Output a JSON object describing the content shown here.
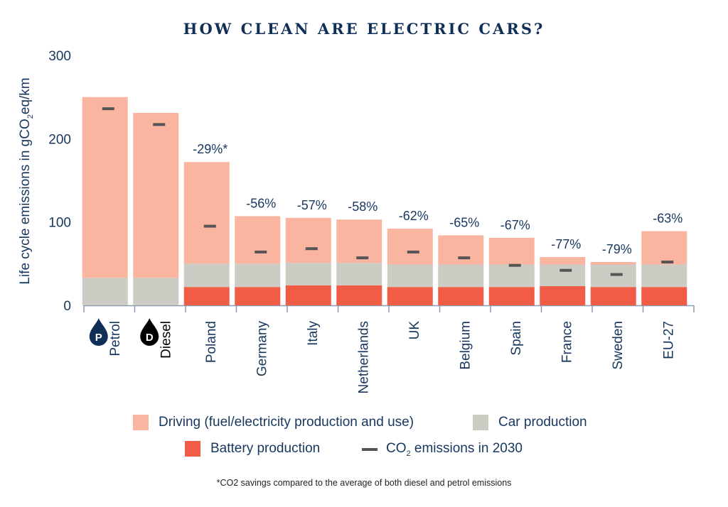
{
  "title": "HOW CLEAN ARE ELECTRIC CARS?",
  "footnote": "*CO2 savings compared to the average of both diesel and petrol emissions",
  "chart_data": {
    "type": "bar",
    "stacked": true,
    "title": "HOW CLEAN ARE ELECTRIC CARS?",
    "xlabel": "",
    "ylabel": "Life cycle emissions in gCO2eq/km",
    "ylim": [
      0,
      300
    ],
    "yticks": [
      0,
      100,
      200,
      300
    ],
    "grid": false,
    "legend_position": "bottom",
    "categories": [
      "Petrol",
      "Diesel",
      "Poland",
      "Germany",
      "Italy",
      "Netherlands",
      "UK",
      "Belgium",
      "Spain",
      "France",
      "Sweden",
      "EU-27"
    ],
    "category_icons": {
      "Petrol": {
        "letter": "P",
        "color": "#0f2f57"
      },
      "Diesel": {
        "letter": "D",
        "color": "#000000"
      }
    },
    "series": [
      {
        "name": "Battery production",
        "color": "#f05c45",
        "values": [
          0,
          0,
          22,
          22,
          24,
          24,
          22,
          22,
          22,
          23,
          22,
          22
        ]
      },
      {
        "name": "Car production",
        "color": "#cccbc4",
        "values": [
          33,
          33,
          28,
          28,
          27,
          27,
          27,
          27,
          27,
          26,
          27,
          27
        ]
      },
      {
        "name": "Driving (fuel/electricity production and use)",
        "color": "#f9b5a0",
        "values": [
          217,
          198,
          122,
          57,
          54,
          52,
          43,
          35,
          32,
          9,
          3,
          40
        ]
      }
    ],
    "markers": {
      "name": "CO2 emissions in 2030",
      "color": "#555555",
      "values": [
        236,
        217,
        95,
        64,
        68,
        57,
        64,
        57,
        48,
        42,
        37,
        52
      ]
    },
    "annotations": [
      "",
      "",
      "-29%*",
      "-56%",
      "-57%",
      "-58%",
      "-62%",
      "-65%",
      "-67%",
      "-77%",
      "-79%",
      "-63%"
    ]
  },
  "legend": {
    "driving": "Driving (fuel/electricity production and use)",
    "car": "Car production",
    "battery": "Battery production",
    "co2_prefix": "CO",
    "co2_sub": "2",
    "co2_suffix": " emissions in 2030"
  }
}
